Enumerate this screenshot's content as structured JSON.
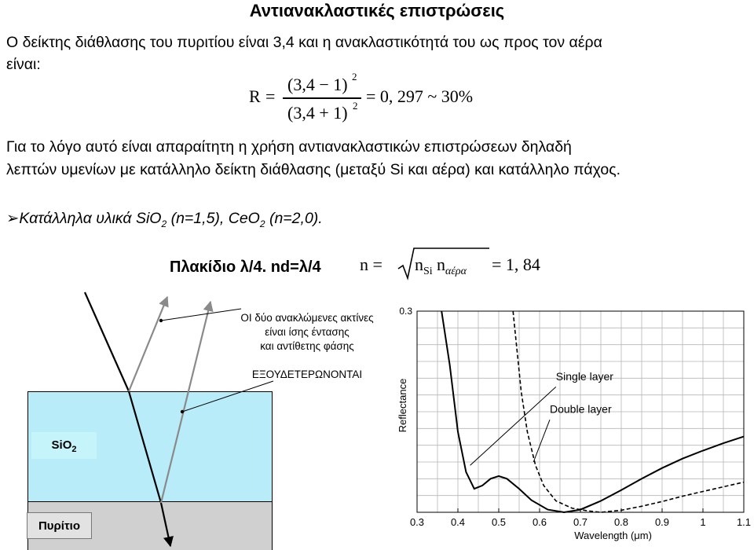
{
  "title": "Αντιανακλαστικές επιστρώσεις",
  "intro_line1": "Ο δείκτης διάθλασης του πυριτίου είναι 3,4 και η ανακλαστικότητά του ως προς τον αέρα",
  "intro_line2": "είναι:",
  "formula": {
    "lhs": "R",
    "eq": "=",
    "numerator": "(3,4 − 1)",
    "numerator_exp": "2",
    "denominator": "(3,4 + 1)",
    "denominator_exp": "2",
    "result": "= 0, 297 ~ 30%"
  },
  "body_line1": "Για το λόγο αυτό είναι απαραίτητη η χρήση αντιανακλαστικών επιστρώσεων δηλαδή",
  "body_line2": "λεπτών υμενίων με κατάλληλο δείκτη διάθλασης (μεταξύ Si και αέρα) και κατάλληλο πάχος.",
  "bullet": {
    "marker": "➢",
    "prefix": "Κατάλληλα υλικά SiO",
    "sub1": "2",
    "middle": " (n=1,5), CeO",
    "sub2": "2",
    "suffix": " (n=2,0)."
  },
  "plate_label": "Πλακίδιο λ/4. nd=λ/4",
  "index_formula": {
    "lhs": "n =",
    "n1": "n",
    "sub1": "Si",
    "n2": "n",
    "sub2": "αέρα",
    "result": "= 1, 84"
  },
  "note_lines": [
    "ΟΙ δύο ανακλώμενες ακτίνες",
    "είναι ίσης έντασης",
    "και αντίθετης φάσης"
  ],
  "note2": "ΕΞΟΥΔΕΤΕΡΩΝΟΝΤΑΙ",
  "materials": {
    "coating": "SiO",
    "coating_sub": "2",
    "substrate": "Πυρίτιο"
  },
  "colors": {
    "coating": "#b8ecf8",
    "substrate": "#d0d0d0",
    "label_box": "#c6f4fb",
    "ray_reflected": "#8a8a8a"
  },
  "chart_data": {
    "type": "line",
    "title": "",
    "xlabel": "Wavelength (μm)",
    "ylabel": "Reflectance",
    "xlim": [
      0.3,
      1.1
    ],
    "ylim": [
      0,
      0.3
    ],
    "x_ticks": [
      "0.3",
      "0.4",
      "0.5",
      "0.6",
      "0.7",
      "0.8",
      "0.9",
      "1",
      "1.1"
    ],
    "y_ticks_labeled": [
      "0.3"
    ],
    "grid": true,
    "annotations": [
      "Single layer",
      "Double layer"
    ],
    "series": [
      {
        "label": "Single layer",
        "style": "solid",
        "x": [
          0.36,
          0.38,
          0.4,
          0.42,
          0.44,
          0.46,
          0.48,
          0.5,
          0.52,
          0.55,
          0.58,
          0.62,
          0.66,
          0.7,
          0.75,
          0.8,
          0.85,
          0.9,
          0.95,
          1.0,
          1.05,
          1.1
        ],
        "y": [
          0.31,
          0.22,
          0.12,
          0.06,
          0.035,
          0.04,
          0.05,
          0.054,
          0.05,
          0.035,
          0.018,
          0.004,
          0.0,
          0.004,
          0.017,
          0.033,
          0.05,
          0.066,
          0.08,
          0.092,
          0.103,
          0.113
        ]
      },
      {
        "label": "Double layer",
        "style": "dashed",
        "x": [
          0.535,
          0.545,
          0.555,
          0.57,
          0.59,
          0.61,
          0.64,
          0.68,
          0.72,
          0.75,
          0.8,
          0.85,
          0.9,
          0.95,
          1.0,
          1.05,
          1.1
        ],
        "y": [
          0.31,
          0.24,
          0.18,
          0.12,
          0.07,
          0.04,
          0.017,
          0.006,
          0.002,
          0.0,
          0.003,
          0.009,
          0.016,
          0.024,
          0.031,
          0.038,
          0.045
        ]
      }
    ]
  }
}
